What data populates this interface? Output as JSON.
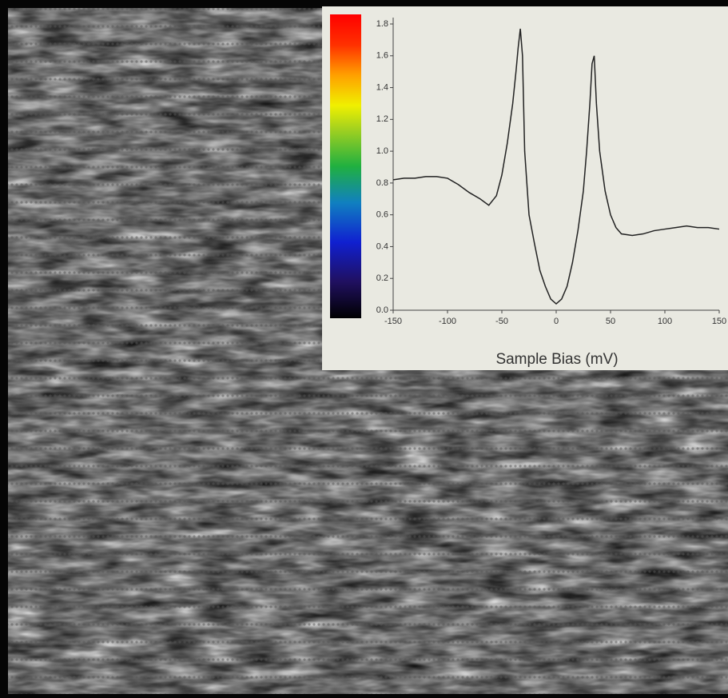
{
  "chart_data": {
    "type": "line",
    "x_label": "Sample Bias (mV)",
    "x": [
      -150,
      -140,
      -130,
      -120,
      -110,
      -100,
      -90,
      -80,
      -70,
      -62,
      -55,
      -50,
      -45,
      -40,
      -37,
      -35,
      -33,
      -31,
      -29,
      -27,
      -25,
      -20,
      -15,
      -10,
      -5,
      0,
      5,
      10,
      15,
      20,
      25,
      28,
      31,
      33,
      35,
      37,
      40,
      45,
      50,
      55,
      60,
      70,
      80,
      90,
      100,
      110,
      120,
      130,
      140,
      150
    ],
    "series": [
      {
        "color": "#222222",
        "values": [
          0.82,
          0.83,
          0.83,
          0.84,
          0.84,
          0.83,
          0.79,
          0.74,
          0.7,
          0.66,
          0.72,
          0.85,
          1.05,
          1.3,
          1.5,
          1.65,
          1.77,
          1.6,
          1.0,
          0.8,
          0.6,
          0.42,
          0.25,
          0.15,
          0.07,
          0.04,
          0.07,
          0.15,
          0.3,
          0.5,
          0.75,
          1.0,
          1.3,
          1.55,
          1.6,
          1.3,
          1.0,
          0.75,
          0.6,
          0.52,
          0.48,
          0.47,
          0.48,
          0.5,
          0.51,
          0.52,
          0.53,
          0.52,
          0.52,
          0.51
        ]
      }
    ],
    "xlim": [
      -150,
      150
    ],
    "xticks": [
      -150,
      -100,
      -50,
      0,
      50,
      100,
      150
    ],
    "ylim": [
      0,
      1.8
    ],
    "yticks": [
      {
        "value": 0,
        "label": "0.0"
      },
      {
        "value": 0.2,
        "label": "0.2"
      },
      {
        "value": 0.4,
        "label": "0.4"
      },
      {
        "value": 0.6,
        "label": "0.6"
      },
      {
        "value": 0.8,
        "label": "0.8"
      },
      {
        "value": 1,
        "label": "1.0"
      },
      {
        "value": 1.2,
        "label": "1.2"
      },
      {
        "value": 1.4,
        "label": "1.4"
      },
      {
        "value": 1.6,
        "label": "1.6"
      },
      {
        "value": 1.8,
        "label": "1.8"
      }
    ]
  }
}
